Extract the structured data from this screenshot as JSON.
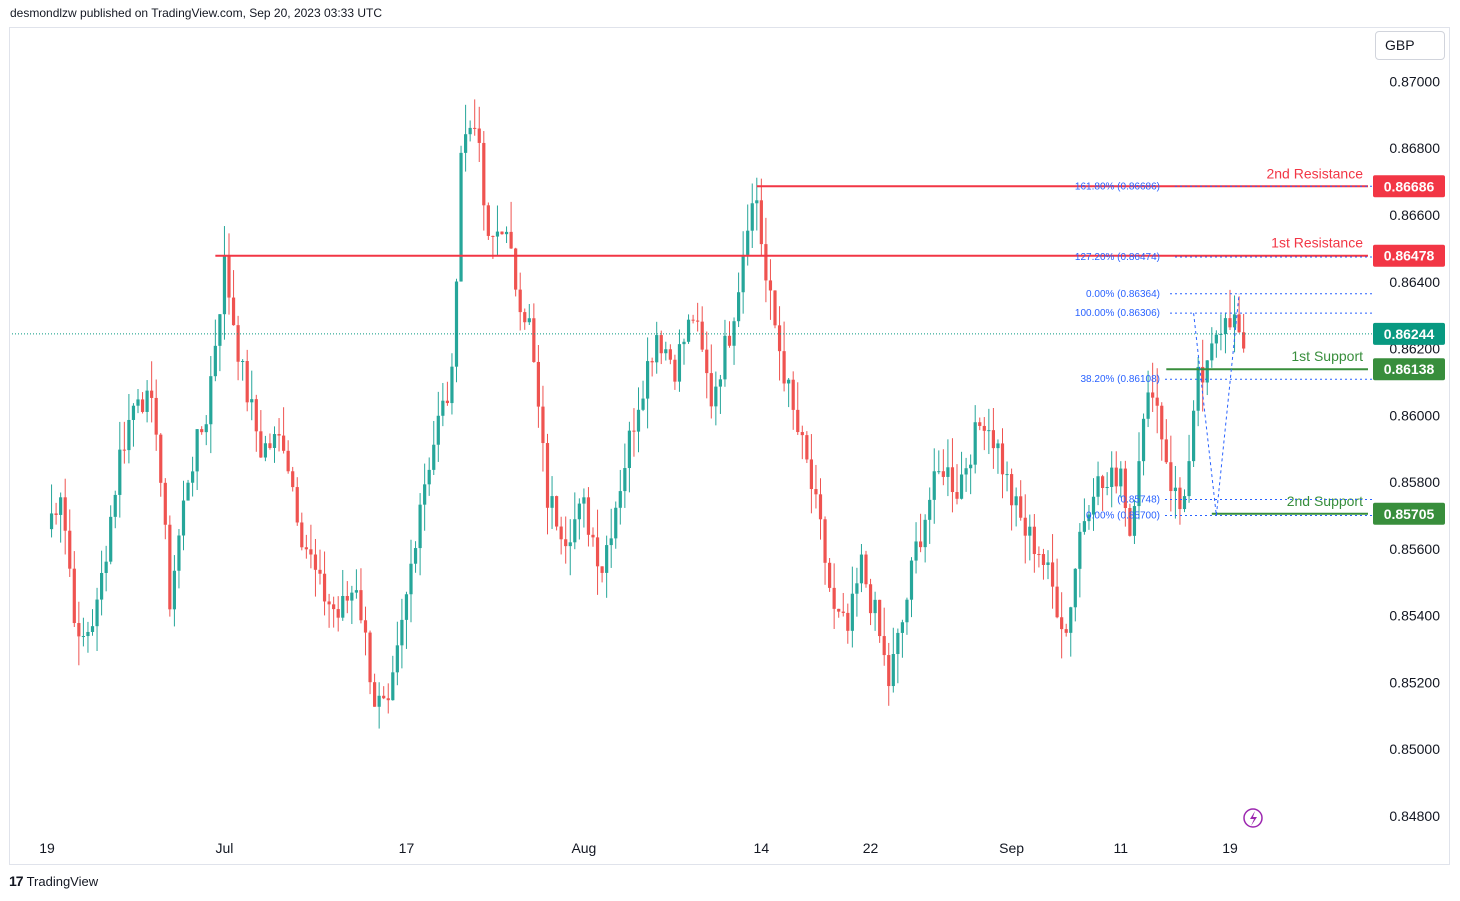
{
  "header": {
    "published_text": "desmondlzw published on TradingView.com, Sep 20, 2023 03:33 UTC"
  },
  "currency_button": {
    "label": "GBP"
  },
  "footer": {
    "logo_text": "TradingView",
    "logo_icon": "tradingview-logo-icon"
  },
  "colors": {
    "up": "#26a69a",
    "down": "#ef5350",
    "resistance": "#f23645",
    "support": "#388e3c",
    "current_price": "#089981",
    "fib": "#2962ff",
    "axis_text": "#131722"
  },
  "chart_data": {
    "type": "candlestick",
    "symbol_quote": "GBP",
    "ylim": [
      0.8474,
      0.8716
    ],
    "y_ticks": [
      "0.87000",
      "0.86800",
      "0.86600",
      "0.86400",
      "0.86200",
      "0.86000",
      "0.85800",
      "0.85600",
      "0.85400",
      "0.85200",
      "0.85000",
      "0.84800"
    ],
    "y_tick_values": [
      0.87,
      0.868,
      0.866,
      0.864,
      0.862,
      0.86,
      0.858,
      0.856,
      0.854,
      0.852,
      0.85,
      0.848
    ],
    "x_ticks": [
      {
        "label": "19",
        "bar": 0
      },
      {
        "label": "Jul",
        "bar": 39
      },
      {
        "label": "17",
        "bar": 79
      },
      {
        "label": "Aug",
        "bar": 118
      },
      {
        "label": "14",
        "bar": 157
      },
      {
        "label": "22",
        "bar": 181
      },
      {
        "label": "Sep",
        "bar": 212
      },
      {
        "label": "11",
        "bar": 236
      },
      {
        "label": "19",
        "bar": 260
      }
    ],
    "anchors": [
      {
        "bar": 0,
        "close": 0.8566
      },
      {
        "bar": 3,
        "close": 0.8578
      },
      {
        "bar": 7,
        "close": 0.853
      },
      {
        "bar": 11,
        "close": 0.8542
      },
      {
        "bar": 16,
        "close": 0.8588
      },
      {
        "bar": 20,
        "close": 0.8608
      },
      {
        "bar": 24,
        "close": 0.8598
      },
      {
        "bar": 27,
        "close": 0.8545
      },
      {
        "bar": 31,
        "close": 0.8582
      },
      {
        "bar": 35,
        "close": 0.86
      },
      {
        "bar": 39,
        "close": 0.8645
      },
      {
        "bar": 43,
        "close": 0.8612
      },
      {
        "bar": 47,
        "close": 0.859
      },
      {
        "bar": 52,
        "close": 0.8593
      },
      {
        "bar": 56,
        "close": 0.8565
      },
      {
        "bar": 60,
        "close": 0.8548
      },
      {
        "bar": 64,
        "close": 0.854
      },
      {
        "bar": 68,
        "close": 0.855
      },
      {
        "bar": 72,
        "close": 0.8515
      },
      {
        "bar": 75,
        "close": 0.851
      },
      {
        "bar": 79,
        "close": 0.8545
      },
      {
        "bar": 82,
        "close": 0.8575
      },
      {
        "bar": 86,
        "close": 0.8598
      },
      {
        "bar": 89,
        "close": 0.861
      },
      {
        "bar": 91,
        "close": 0.868
      },
      {
        "bar": 94,
        "close": 0.869
      },
      {
        "bar": 97,
        "close": 0.865
      },
      {
        "bar": 100,
        "close": 0.8658
      },
      {
        "bar": 103,
        "close": 0.864
      },
      {
        "bar": 106,
        "close": 0.8627
      },
      {
        "bar": 110,
        "close": 0.8575
      },
      {
        "bar": 114,
        "close": 0.8565
      },
      {
        "bar": 118,
        "close": 0.8572
      },
      {
        "bar": 122,
        "close": 0.8555
      },
      {
        "bar": 126,
        "close": 0.858
      },
      {
        "bar": 130,
        "close": 0.8605
      },
      {
        "bar": 134,
        "close": 0.8625
      },
      {
        "bar": 138,
        "close": 0.8615
      },
      {
        "bar": 142,
        "close": 0.863
      },
      {
        "bar": 146,
        "close": 0.8605
      },
      {
        "bar": 150,
        "close": 0.8625
      },
      {
        "bar": 152,
        "close": 0.864
      },
      {
        "bar": 154,
        "close": 0.866
      },
      {
        "bar": 156,
        "close": 0.8665
      },
      {
        "bar": 158,
        "close": 0.864
      },
      {
        "bar": 161,
        "close": 0.862
      },
      {
        "bar": 164,
        "close": 0.86
      },
      {
        "bar": 167,
        "close": 0.8585
      },
      {
        "bar": 170,
        "close": 0.8565
      },
      {
        "bar": 173,
        "close": 0.854
      },
      {
        "bar": 176,
        "close": 0.8535
      },
      {
        "bar": 179,
        "close": 0.8555
      },
      {
        "bar": 182,
        "close": 0.854
      },
      {
        "bar": 185,
        "close": 0.852
      },
      {
        "bar": 188,
        "close": 0.8538
      },
      {
        "bar": 191,
        "close": 0.856
      },
      {
        "bar": 194,
        "close": 0.8575
      },
      {
        "bar": 197,
        "close": 0.8585
      },
      {
        "bar": 200,
        "close": 0.8578
      },
      {
        "bar": 203,
        "close": 0.859
      },
      {
        "bar": 206,
        "close": 0.86
      },
      {
        "bar": 209,
        "close": 0.859
      },
      {
        "bar": 212,
        "close": 0.8575
      },
      {
        "bar": 215,
        "close": 0.8565
      },
      {
        "bar": 218,
        "close": 0.856
      },
      {
        "bar": 221,
        "close": 0.8548
      },
      {
        "bar": 224,
        "close": 0.8535
      },
      {
        "bar": 227,
        "close": 0.8565
      },
      {
        "bar": 230,
        "close": 0.858
      },
      {
        "bar": 233,
        "close": 0.8578
      },
      {
        "bar": 236,
        "close": 0.8585
      },
      {
        "bar": 238,
        "close": 0.8565
      },
      {
        "bar": 240,
        "close": 0.859
      },
      {
        "bar": 243,
        "close": 0.861
      },
      {
        "bar": 245,
        "close": 0.8595
      },
      {
        "bar": 247,
        "close": 0.858
      },
      {
        "bar": 249,
        "close": 0.8572
      },
      {
        "bar": 251,
        "close": 0.8585
      },
      {
        "bar": 253,
        "close": 0.861
      },
      {
        "bar": 255,
        "close": 0.8612
      },
      {
        "bar": 257,
        "close": 0.8625
      },
      {
        "bar": 259,
        "close": 0.8632
      },
      {
        "bar": 261,
        "close": 0.8628
      },
      {
        "bar": 263,
        "close": 0.862
      }
    ],
    "current_price": 0.86244,
    "levels": [
      {
        "name": "2nd Resistance",
        "value": 0.86686,
        "value_label": "0.86686",
        "kind": "resistance",
        "start_bar": 156
      },
      {
        "name": "1st Resistance",
        "value": 0.86478,
        "value_label": "0.86478",
        "kind": "resistance",
        "start_bar": 37
      },
      {
        "name": "1st Support",
        "value": 0.86138,
        "value_label": "0.86138",
        "kind": "support",
        "start_bar": 246
      },
      {
        "name": "2nd Support",
        "value": 0.85705,
        "value_label": "0.85705",
        "kind": "support",
        "start_bar": 256
      }
    ],
    "current_label": "0.86244",
    "fib_labels": [
      {
        "text": "161.80% (0.86686)",
        "value": 0.86686
      },
      {
        "text": "127.20% (0.86474)",
        "value": 0.86474
      },
      {
        "text": "0.00% (0.86364)",
        "value": 0.86364
      },
      {
        "text": "100.00% (0.86306)",
        "value": 0.86306
      },
      {
        "text": "38.20% (0.86108)",
        "value": 0.86108
      },
      {
        "text": "(0.85748)",
        "value": 0.85748
      },
      {
        "text": "0.00% (0.85700)",
        "value": 0.857
      }
    ]
  }
}
